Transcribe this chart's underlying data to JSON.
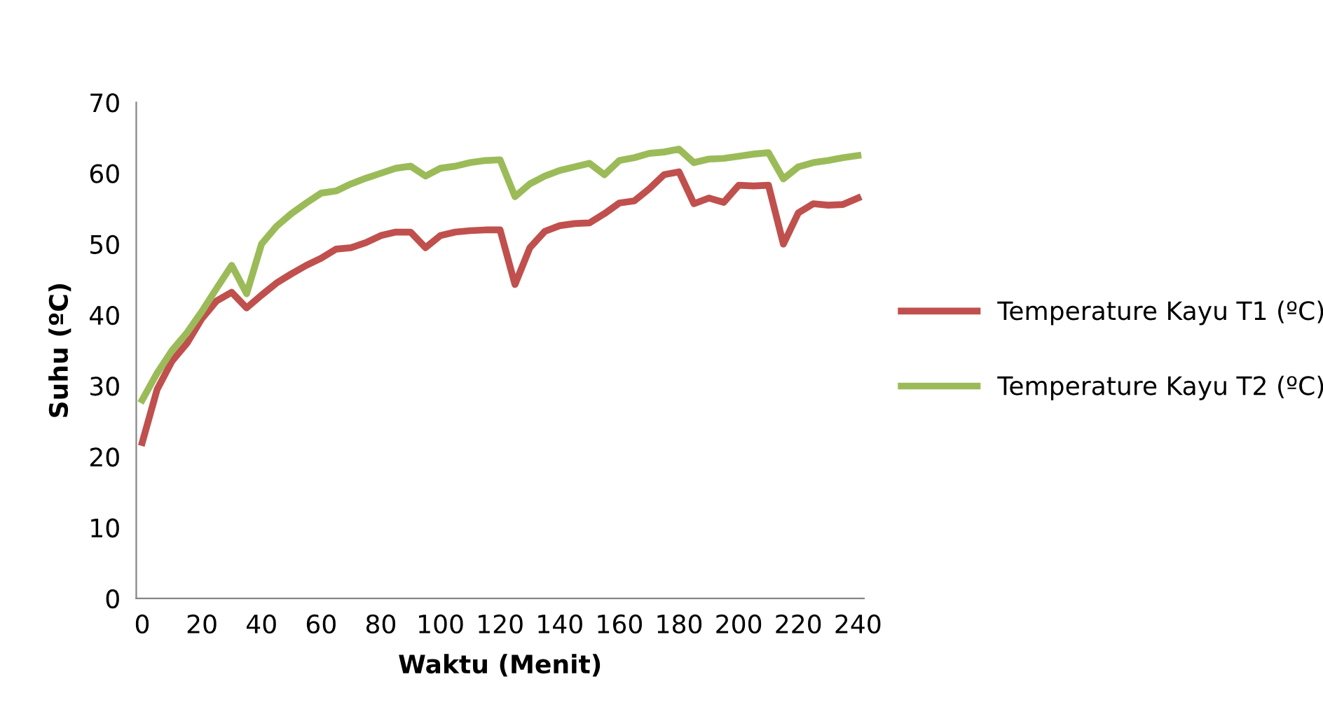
{
  "chart_data": {
    "type": "line",
    "xlabel": "Waktu (Menit)",
    "ylabel": "Suhu (ºC)",
    "x": [
      0,
      5,
      10,
      15,
      20,
      25,
      30,
      35,
      40,
      45,
      50,
      55,
      60,
      65,
      70,
      75,
      80,
      85,
      90,
      95,
      100,
      105,
      110,
      115,
      120,
      125,
      130,
      135,
      140,
      145,
      150,
      155,
      160,
      165,
      170,
      175,
      180,
      185,
      190,
      195,
      200,
      205,
      210,
      215,
      220,
      225,
      230,
      235,
      240
    ],
    "series": [
      {
        "name": "Temperature Kayu T1 (ºC)",
        "color": "#c0504d",
        "values": [
          22,
          29.5,
          33.5,
          36,
          39.5,
          42,
          43.2,
          41,
          42.8,
          44.5,
          45.8,
          47,
          48,
          49.3,
          49.5,
          50.2,
          51.2,
          51.7,
          51.7,
          49.5,
          51.2,
          51.7,
          51.9,
          52,
          52,
          44.3,
          49.5,
          51.8,
          52.6,
          52.9,
          53,
          54.3,
          55.8,
          56.1,
          57.8,
          59.8,
          60.2,
          55.7,
          56.5,
          55.9,
          58.3,
          58.2,
          58.3,
          50,
          54.4,
          55.7,
          55.5,
          55.6,
          56.5
        ]
      },
      {
        "name": "Temperature Kayu T2 (ºC)",
        "color": "#9bbb59",
        "values": [
          28,
          31.8,
          35,
          37.5,
          40.5,
          43.8,
          47,
          43,
          50,
          52.5,
          54.3,
          55.8,
          57.2,
          57.5,
          58.5,
          59.3,
          60,
          60.7,
          61,
          59.6,
          60.7,
          61,
          61.5,
          61.8,
          61.9,
          56.7,
          58.5,
          59.6,
          60.4,
          60.9,
          61.4,
          59.8,
          61.8,
          62.2,
          62.8,
          63,
          63.4,
          61.5,
          62,
          62.1,
          62.4,
          62.7,
          62.9,
          59.2,
          60.9,
          61.5,
          61.8,
          62.2,
          62.5
        ]
      }
    ],
    "xlim": [
      -2,
      242
    ],
    "xticks": [
      0,
      20,
      40,
      60,
      80,
      100,
      120,
      140,
      160,
      180,
      200,
      220,
      240
    ],
    "ylim": [
      0,
      70
    ],
    "yticks": [
      0,
      10,
      20,
      30,
      40,
      50,
      60,
      70
    ],
    "grid": false,
    "legend": "right",
    "marker": "none",
    "line_style": "solid"
  }
}
